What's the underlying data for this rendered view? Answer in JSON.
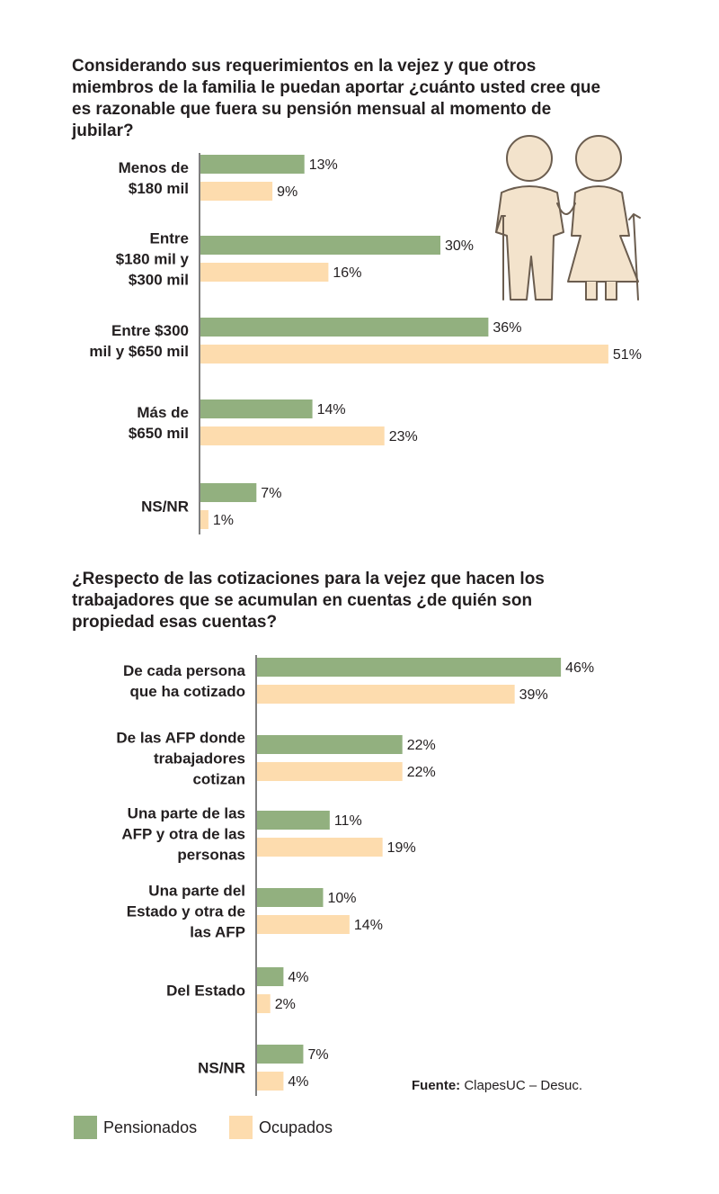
{
  "charts": [
    {
      "title": "Considerando sus requerimientos en la vejez y que otros miembros de la familia le puedan aportar ¿cuánto usted cree que es razonable que fuera su pensión mensual al momento de jubilar?"
    },
    {
      "title": "¿Respecto de las cotizaciones para la vejez que hacen los trabajadores que se acumulan en cuentas ¿de quién son propiedad esas cuentas?"
    }
  ],
  "legend": {
    "pensionados": "Pensionados",
    "ocupados": "Ocupados"
  },
  "source": {
    "label": "Fuente:",
    "text": " ClapesUC – Desuc."
  },
  "colors": {
    "pensionados": "#92b07f",
    "ocupados": "#fddcae",
    "axis": "#555555",
    "illustration": "#f3e3cc",
    "illustration_stroke": "#6b5d4f"
  },
  "icons": [
    "elderly-couple-illustration"
  ],
  "chart_data": [
    {
      "type": "bar",
      "orientation": "horizontal",
      "categories": [
        [
          "Menos de",
          "$180 mil"
        ],
        [
          "Entre",
          "$180 mil y",
          "$300 mil"
        ],
        [
          "Entre $300",
          "mil y $650 mil"
        ],
        [
          "Más de",
          "$650 mil"
        ],
        [
          "NS/NR"
        ]
      ],
      "series": [
        {
          "name": "Pensionados",
          "values": [
            13,
            30,
            36,
            14,
            7
          ]
        },
        {
          "name": "Ocupados",
          "values": [
            9,
            16,
            51,
            23,
            1
          ]
        }
      ],
      "value_labels": [
        [
          "13%",
          "30%",
          "36%",
          "14%",
          "7%"
        ],
        [
          "9%",
          "16%",
          "51%",
          "23%",
          "1%"
        ]
      ],
      "xlim": [
        0,
        51
      ],
      "legend": "bottom-left"
    },
    {
      "type": "bar",
      "orientation": "horizontal",
      "categories": [
        [
          "De cada persona",
          "que ha cotizado"
        ],
        [
          "De las AFP donde",
          "trabajadores",
          "cotizan"
        ],
        [
          "Una parte de las",
          "AFP y otra de las",
          "personas"
        ],
        [
          "Una parte del",
          "Estado y otra de",
          "las AFP"
        ],
        [
          "Del Estado"
        ],
        [
          "NS/NR"
        ]
      ],
      "series": [
        {
          "name": "Pensionados",
          "values": [
            46,
            22,
            11,
            10,
            4,
            7
          ]
        },
        {
          "name": "Ocupados",
          "values": [
            39,
            22,
            19,
            14,
            2,
            4
          ]
        }
      ],
      "value_labels": [
        [
          "46%",
          "22%",
          "11%",
          "10%",
          "4%",
          "7%"
        ],
        [
          "39%",
          "22%",
          "19%",
          "14%",
          "2%",
          "4%"
        ]
      ],
      "xlim": [
        0,
        46
      ],
      "legend": "bottom-left"
    }
  ]
}
